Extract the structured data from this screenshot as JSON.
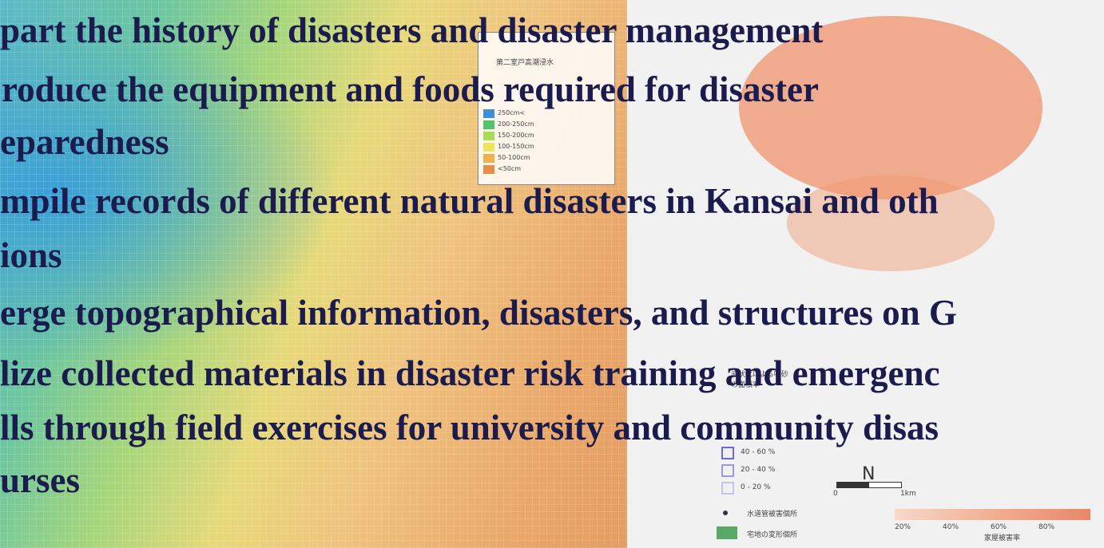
{
  "slide": {
    "bullets": [
      "part the history of disasters and disaster management",
      "roduce the equipment and foods required for disaster",
      "eparedness",
      "mpile records of different natural disasters in Kansai and oth",
      "ions",
      "erge topographical information, disasters, and structures on G",
      "lize collected materials in disaster risk training and emergenc",
      "lls through field exercises for university and community disas",
      "urses"
    ]
  },
  "map_left": {
    "legend_top": "第二室戸高潮浸水",
    "legend": [
      "250cm<",
      "200-250cm",
      "150-200cm",
      "100-150cm",
      "50-100cm",
      "<50cm"
    ]
  },
  "map_right": {
    "legend_title": "液状化による噴砂の面積率",
    "legend": [
      "40 - 60 %",
      "20 - 40 %",
      "0 - 20 %"
    ],
    "pipe_damage": "水道管被害個所",
    "land_deformation": "宅地の変形個所",
    "scale_start": "0",
    "scale_end": "1km",
    "north": "N",
    "damage_ticks": [
      "20%",
      "40%",
      "60%",
      "80%"
    ],
    "damage_title": "家屋被害率"
  }
}
